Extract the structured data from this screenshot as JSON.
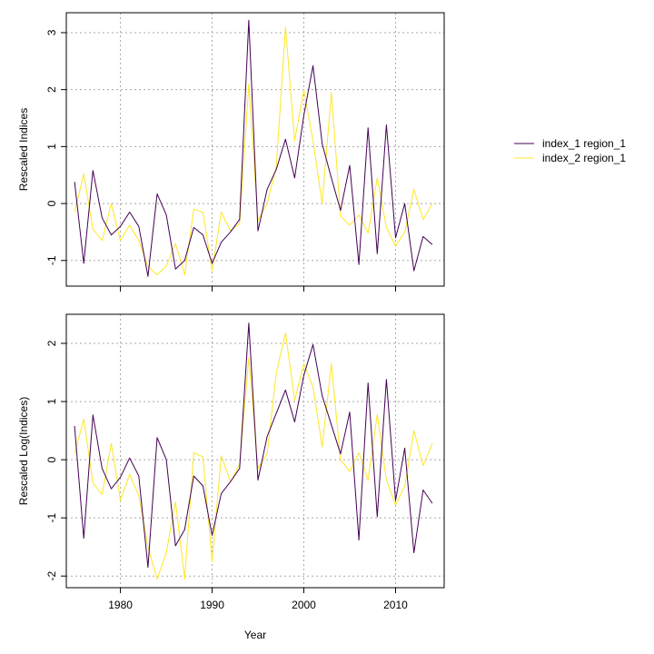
{
  "colors": {
    "index_1": "#440154",
    "index_2": "#FDE725",
    "grid": "#a8a8a8",
    "axis": "#000000"
  },
  "legend": {
    "placement": "right",
    "entries": [
      "index_1 region_1",
      "index_2 region_1"
    ]
  },
  "chart_data": [
    {
      "type": "line",
      "ylabel": "Rescaled Indices",
      "xlabel": "",
      "xlim": [
        1974.1,
        2015.3
      ],
      "ylim": [
        -1.45,
        3.35
      ],
      "x_ticks": [
        1980,
        1990,
        2000,
        2010
      ],
      "x_tick_labels_visible": false,
      "y_ticks": [
        -1,
        0,
        1,
        2,
        3
      ],
      "y_tick_labels": [
        "-1",
        "0",
        "1",
        "2",
        "3"
      ],
      "grid": true,
      "x": [
        1975,
        1976,
        1977,
        1978,
        1979,
        1980,
        1981,
        1982,
        1983,
        1984,
        1985,
        1986,
        1987,
        1988,
        1989,
        1990,
        1991,
        1992,
        1993,
        1994,
        1995,
        1996,
        1997,
        1998,
        1999,
        2000,
        2001,
        2002,
        2003,
        2004,
        2005,
        2006,
        2007,
        2008,
        2009,
        2010,
        2011,
        2012,
        2013,
        2014
      ],
      "series": [
        {
          "name": "index_1 region_1",
          "color_key": "index_1",
          "values": [
            0.38,
            -1.05,
            0.58,
            -0.25,
            -0.55,
            -0.4,
            -0.15,
            -0.4,
            -1.28,
            0.17,
            -0.2,
            -1.15,
            -1.0,
            -0.42,
            -0.55,
            -1.05,
            -0.68,
            -0.5,
            -0.28,
            3.22,
            -0.48,
            0.25,
            0.6,
            1.13,
            0.45,
            1.55,
            2.42,
            1.05,
            0.45,
            -0.12,
            0.67,
            -1.07,
            1.33,
            -0.88,
            1.38,
            -0.6,
            0.0,
            -1.18,
            -0.58,
            -0.72
          ]
        },
        {
          "name": "index_2 region_1",
          "color_key": "index_2",
          "values": [
            -0.15,
            0.52,
            -0.45,
            -0.65,
            0.0,
            -0.65,
            -0.38,
            -0.65,
            -1.1,
            -1.25,
            -1.1,
            -0.7,
            -1.25,
            -0.1,
            -0.15,
            -1.18,
            -0.15,
            -0.48,
            -0.35,
            2.1,
            -0.3,
            0.0,
            0.65,
            3.1,
            1.1,
            2.0,
            1.1,
            0.0,
            1.95,
            -0.22,
            -0.38,
            -0.2,
            -0.52,
            0.45,
            -0.42,
            -0.75,
            -0.5,
            0.25,
            -0.28,
            0.0
          ]
        }
      ]
    },
    {
      "type": "line",
      "ylabel": "Rescaled Log(Indices)",
      "xlabel": "Year",
      "xlim": [
        1974.1,
        2015.3
      ],
      "ylim": [
        -2.2,
        2.5
      ],
      "x_ticks": [
        1980,
        1990,
        2000,
        2010
      ],
      "x_tick_labels": [
        "1980",
        "1990",
        "2000",
        "2010"
      ],
      "y_ticks": [
        -2,
        -1,
        0,
        1,
        2
      ],
      "y_tick_labels": [
        "-2",
        "-1",
        "0",
        "1",
        "2"
      ],
      "grid": true,
      "x": [
        1975,
        1976,
        1977,
        1978,
        1979,
        1980,
        1981,
        1982,
        1983,
        1984,
        1985,
        1986,
        1987,
        1988,
        1989,
        1990,
        1991,
        1992,
        1993,
        1994,
        1995,
        1996,
        1997,
        1998,
        1999,
        2000,
        2001,
        2002,
        2003,
        2004,
        2005,
        2006,
        2007,
        2008,
        2009,
        2010,
        2011,
        2012,
        2013,
        2014
      ],
      "series": [
        {
          "name": "index_1 region_1",
          "color_key": "index_1",
          "values": [
            0.58,
            -1.35,
            0.77,
            -0.15,
            -0.5,
            -0.3,
            0.03,
            -0.28,
            -1.85,
            0.38,
            0.0,
            -1.48,
            -1.2,
            -0.28,
            -0.45,
            -1.3,
            -0.58,
            -0.38,
            -0.15,
            2.35,
            -0.35,
            0.4,
            0.8,
            1.2,
            0.65,
            1.45,
            1.98,
            1.1,
            0.6,
            0.1,
            0.82,
            -1.38,
            1.32,
            -0.98,
            1.38,
            -0.7,
            0.2,
            -1.6,
            -0.52,
            -0.75
          ]
        },
        {
          "name": "index_2 region_1",
          "color_key": "index_2",
          "values": [
            0.1,
            0.7,
            -0.4,
            -0.6,
            0.28,
            -0.7,
            -0.25,
            -0.62,
            -1.5,
            -2.05,
            -1.6,
            -0.72,
            -2.05,
            0.12,
            0.05,
            -1.75,
            0.07,
            -0.38,
            -0.08,
            1.75,
            -0.15,
            0.1,
            1.5,
            2.18,
            1.02,
            1.65,
            1.25,
            0.22,
            1.65,
            0.0,
            -0.2,
            0.12,
            -0.35,
            0.78,
            -0.35,
            -0.78,
            -0.45,
            0.5,
            -0.1,
            0.28
          ]
        }
      ]
    }
  ]
}
